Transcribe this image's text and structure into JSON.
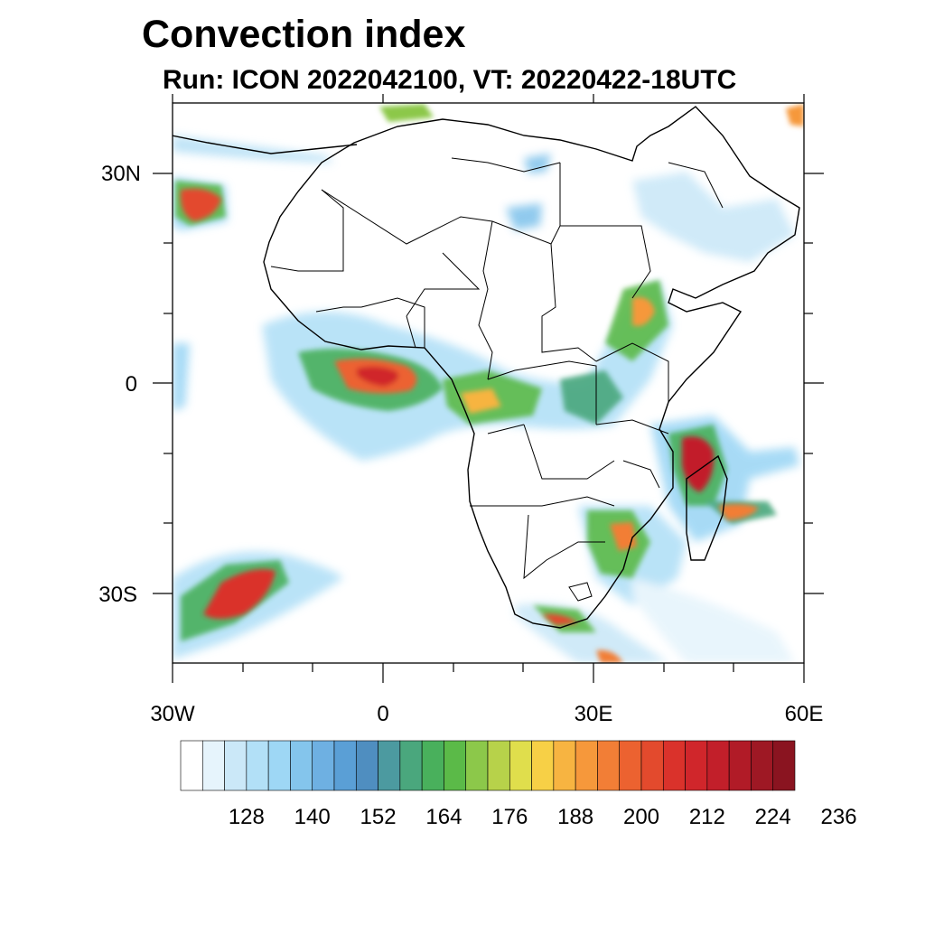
{
  "title": "Convection index",
  "subtitle": "Run: ICON 2022042100,  VT: 20220422-18UTC",
  "map": {
    "region": "Africa",
    "lon_range": [
      -30,
      60
    ],
    "lat_range": [
      -40,
      40
    ],
    "x_tick_labels": [
      "30W",
      "0",
      "30E",
      "60E"
    ],
    "y_tick_labels": [
      "30N",
      "0",
      "30S"
    ]
  },
  "colorbar": {
    "labels": [
      "128",
      "140",
      "152",
      "164",
      "176",
      "188",
      "200",
      "212",
      "224",
      "236"
    ],
    "colors": [
      "#ffffff",
      "#e6f4fc",
      "#cbe8f8",
      "#b2e0f7",
      "#9ed7f5",
      "#84c5ec",
      "#6eb0e2",
      "#5a9fd6",
      "#4f8ec0",
      "#4c9aa0",
      "#4aa77d",
      "#49b05c",
      "#5bba48",
      "#8cc84a",
      "#b7d24a",
      "#e0de4c",
      "#f7d046",
      "#f7b441",
      "#f6983b",
      "#f27e36",
      "#ec6230",
      "#e34a2d",
      "#da322b",
      "#d0262b",
      "#c21f2a",
      "#b11b27",
      "#9e1824",
      "#8a1420"
    ]
  }
}
